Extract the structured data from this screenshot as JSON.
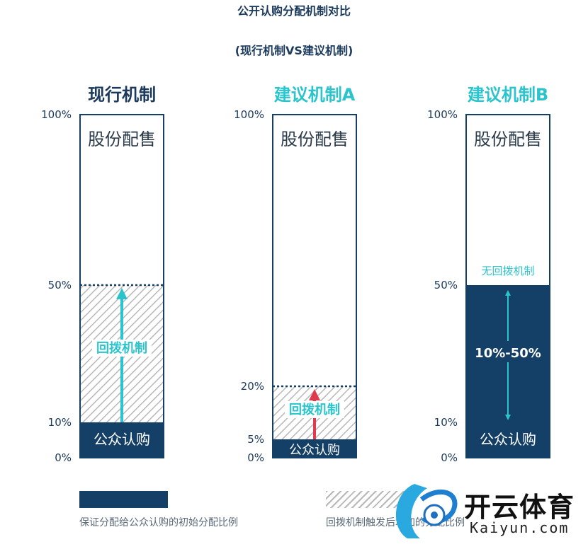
{
  "title": "公开认购分配机制对比",
  "subtitle": "(现行机制VS建议机制)",
  "colors": {
    "navy": "#143f66",
    "cyan": "#2bc4cc",
    "red": "#e03a4e",
    "hatch": "#b8b8b8",
    "label_dark": "#1b3a5c"
  },
  "chart_data": {
    "type": "bar",
    "title": "公开认购分配机制对比",
    "subtitle": "(现行机制VS建议机制)",
    "ylim": [
      0,
      100
    ],
    "categories": [
      "现行机制",
      "建议机制A",
      "建议机制B"
    ],
    "bars": [
      {
        "name": "现行机制",
        "name_color": "#1b3a5c",
        "ticks": [
          "100%",
          "50%",
          "10%",
          "0%"
        ],
        "tick_values": [
          100,
          50,
          10,
          0
        ],
        "top_label": "股份配售",
        "base_value": 10,
        "base_label": "公众认购",
        "clawback_to": 50,
        "clawback_label": "回拨机制",
        "arrow": "cyan"
      },
      {
        "name": "建议机制A",
        "name_color": "#2bc4cc",
        "ticks": [
          "100%",
          "20%",
          "5%",
          "0%"
        ],
        "tick_values": [
          100,
          20,
          5,
          0
        ],
        "top_label": "股份配售",
        "base_value": 5,
        "base_label": "公众认购",
        "clawback_to": 20,
        "clawback_label": "回拨机制",
        "arrow": "red"
      },
      {
        "name": "建议机制B",
        "name_color": "#2bc4cc",
        "ticks": [
          "100%",
          "50%",
          "10%",
          "0%"
        ],
        "tick_values": [
          100,
          50,
          10,
          0
        ],
        "top_label": "股份配售",
        "base_value": 50,
        "base_label": "公众认购",
        "range_label": "10%-50%",
        "range": [
          10,
          50
        ],
        "note_label": "无回拨机制"
      }
    ],
    "legend": [
      {
        "label": "保证分配给公众认购的初始分配比例",
        "style": "solid"
      },
      {
        "label": "回拨机制触发后增加的分配比例",
        "style": "hatched"
      }
    ]
  },
  "legend": {
    "solid_label": "保证分配给公众认购的初始分配比例",
    "hatch_label": "回拨机制触发后增加的分配比例"
  },
  "watermark": {
    "brand": "开云体育",
    "domain": "Kaiyun.com"
  }
}
